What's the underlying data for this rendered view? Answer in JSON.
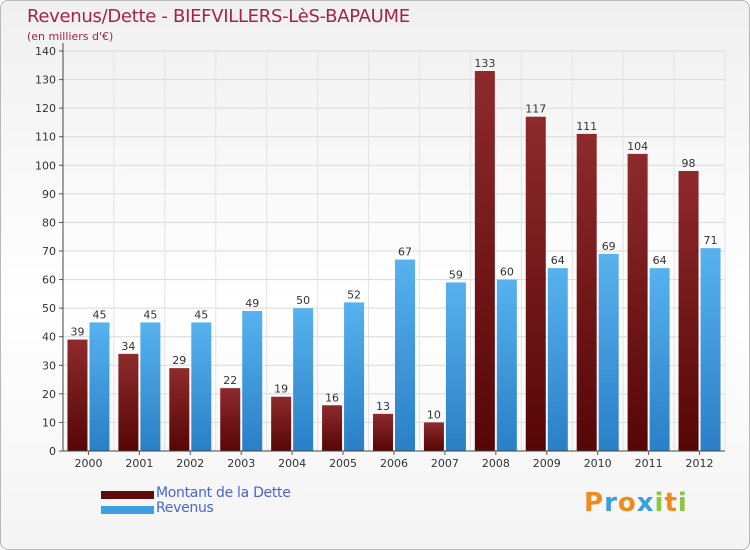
{
  "chart_data": {
    "type": "bar",
    "title": "Revenus/Dette - BIEFVILLERS-LèS-BAPAUME",
    "subtitle": "(en milliers d'€)",
    "categories": [
      "2000",
      "2001",
      "2002",
      "2003",
      "2004",
      "2005",
      "2006",
      "2007",
      "2008",
      "2009",
      "2010",
      "2011",
      "2012"
    ],
    "series": [
      {
        "name": "Montant de la Dette",
        "values": [
          39,
          34,
          29,
          22,
          19,
          16,
          13,
          10,
          133,
          117,
          111,
          104,
          98
        ],
        "color": "#7a1a1c"
      },
      {
        "name": "Revenus",
        "values": [
          45,
          45,
          45,
          49,
          50,
          52,
          67,
          59,
          60,
          64,
          69,
          64,
          71
        ],
        "color": "#3f9fe0"
      }
    ],
    "ylim": [
      0,
      140
    ],
    "yticks": [
      0,
      10,
      20,
      30,
      40,
      50,
      60,
      70,
      80,
      90,
      100,
      110,
      120,
      130,
      140
    ],
    "grid": true,
    "legend": "bottom-left"
  },
  "legend": {
    "items": [
      {
        "label": "Montant de la Dette",
        "color": "#5e0b0b"
      },
      {
        "label": "Revenus",
        "color": "#3f9fe0"
      }
    ]
  },
  "logo": {
    "text": "Proxiti",
    "letters": [
      "P",
      "r",
      "o",
      "x",
      "i",
      "t",
      "i"
    ],
    "colors": [
      "#f08a1c",
      "#3aa0dc",
      "#f08a1c",
      "#3aa0dc",
      "#8cc63f",
      "#f08a1c",
      "#8cc63f"
    ]
  }
}
